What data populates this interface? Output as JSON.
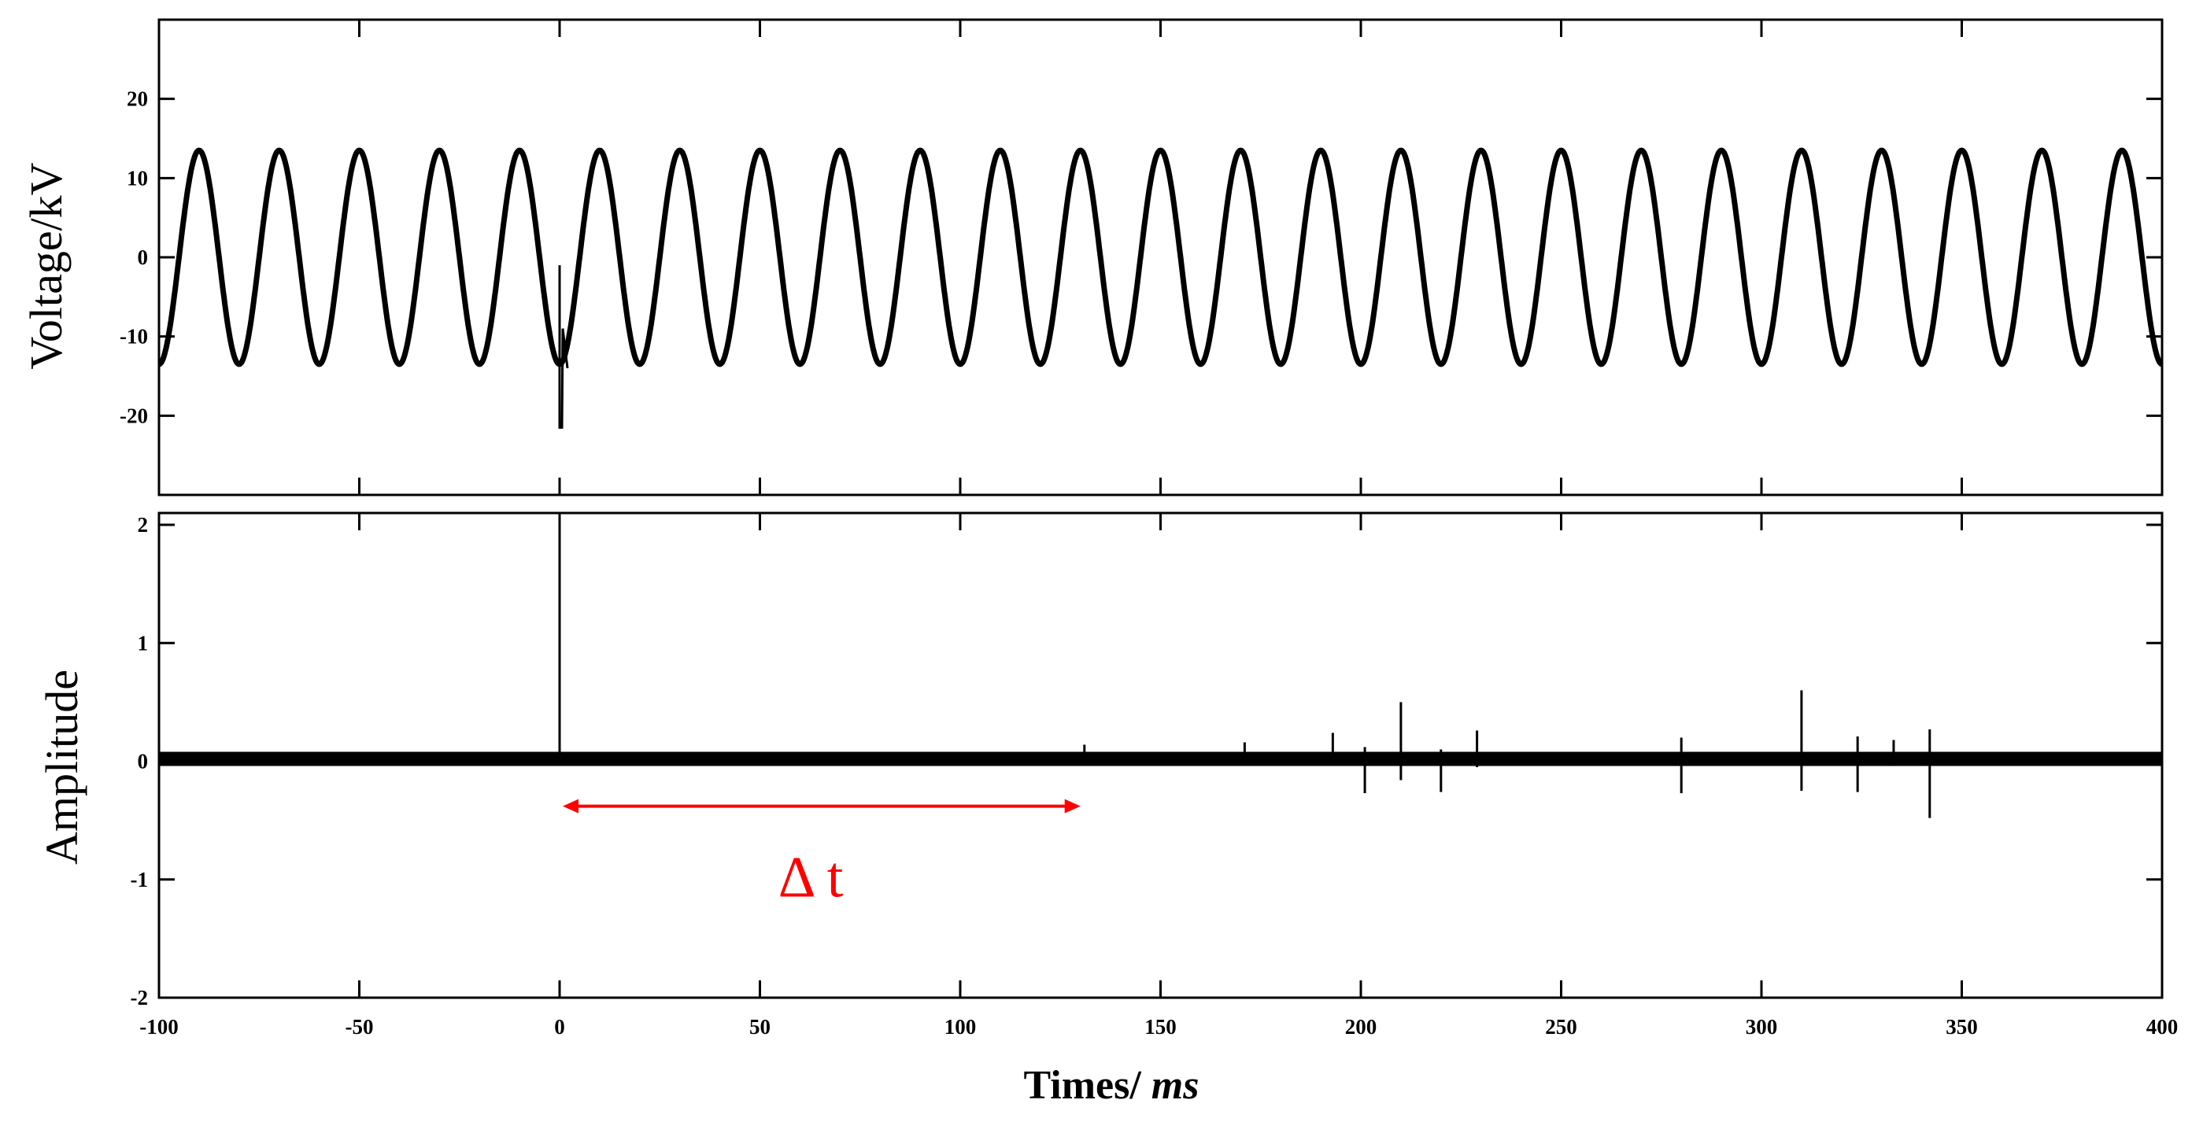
{
  "chart_data": [
    {
      "type": "line",
      "ylabel": "Voltage/kV",
      "xlim": [
        -100,
        400
      ],
      "ylim": [
        -30,
        30
      ],
      "y_ticks": [
        20,
        10,
        0,
        -10,
        -20
      ],
      "series": [
        {
          "style": "sinusoid",
          "amplitude_kV": 13.5,
          "frequency_Hz": 50,
          "trough_at_ms": -100,
          "disturbance": {
            "x_ms": 0,
            "min_kV": -21.5,
            "max_kV": -9
          }
        }
      ]
    },
    {
      "type": "line",
      "ylabel": "Amplitude",
      "xlabel": "Times/ ms",
      "xlabel_prefix": "Times/ ",
      "xlabel_unit": "ms",
      "xlim": [
        -100,
        400
      ],
      "ylim": [
        -2,
        2.1
      ],
      "y_ticks": [
        2,
        1,
        0,
        -1,
        -2
      ],
      "x_ticks": [
        -100,
        -50,
        0,
        50,
        100,
        150,
        200,
        250,
        300,
        350,
        400
      ],
      "baseline_band": [
        -0.04,
        0.08
      ],
      "pulses": [
        {
          "x": 0,
          "ymin": 0,
          "ymax": 2.0
        },
        {
          "x": 131,
          "ymin": 0,
          "ymax": 0.14
        },
        {
          "x": 171,
          "ymin": 0,
          "ymax": 0.16
        },
        {
          "x": 193,
          "ymin": 0,
          "ymax": 0.24
        },
        {
          "x": 201,
          "ymin": -0.27,
          "ymax": 0.12
        },
        {
          "x": 210,
          "ymin": -0.16,
          "ymax": 0.5
        },
        {
          "x": 220,
          "ymin": -0.26,
          "ymax": 0.1
        },
        {
          "x": 229,
          "ymin": -0.05,
          "ymax": 0.26
        },
        {
          "x": 280,
          "ymin": -0.27,
          "ymax": 0.2
        },
        {
          "x": 310,
          "ymin": -0.25,
          "ymax": 0.6
        },
        {
          "x": 324,
          "ymin": -0.26,
          "ymax": 0.21
        },
        {
          "x": 333,
          "ymin": -0.04,
          "ymax": 0.18
        },
        {
          "x": 342,
          "ymin": -0.48,
          "ymax": 0.27
        }
      ],
      "annotation": {
        "label": "Δ t",
        "x_start": 0,
        "x_end": 130,
        "y": -0.38,
        "color": "#ff0000"
      }
    }
  ]
}
